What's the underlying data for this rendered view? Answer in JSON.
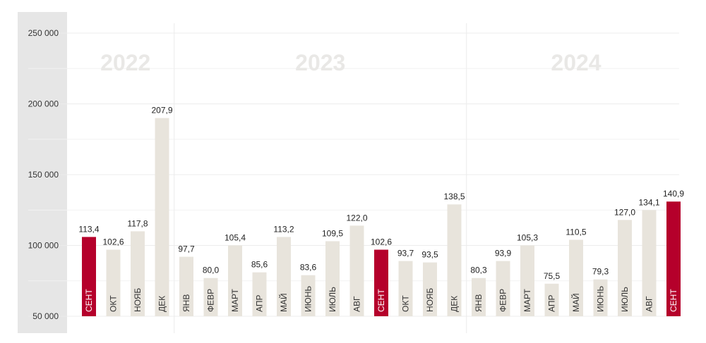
{
  "chart_data": {
    "type": "bar",
    "title": "",
    "xlabel": "",
    "ylabel": "",
    "ylim": [
      50000,
      250000
    ],
    "yticks": [
      "250 000",
      "200 000",
      "150 000",
      "100 000",
      "50 000"
    ],
    "ytick_values": [
      250000,
      200000,
      150000,
      100000,
      50000
    ],
    "grid": true,
    "years": [
      "2022",
      "2023",
      "2024"
    ],
    "colors": {
      "bar": "#e8e4dc",
      "highlight": "#b5002b",
      "axis_panel": "#e6e6e6",
      "grid": "#ececec"
    },
    "categories": [
      "СЕНТ",
      "ОКТ",
      "НОЯБ",
      "ДЕК",
      "ЯНВ",
      "ФЕВР",
      "МАРТ",
      "АПР",
      "МАЙ",
      "ИЮНЬ",
      "ИЮЛЬ",
      "АВГ",
      "СЕНТ",
      "ОКТ",
      "НОЯБ",
      "ДЕК",
      "ЯНВ",
      "ФЕВР",
      "МАРТ",
      "АПР",
      "МАЙ",
      "ИЮНЬ",
      "ИЮЛЬ",
      "АВГ",
      "СЕНТ"
    ],
    "category_year": [
      "2022",
      "2022",
      "2022",
      "2022",
      "2023",
      "2023",
      "2023",
      "2023",
      "2023",
      "2023",
      "2023",
      "2023",
      "2023",
      "2023",
      "2023",
      "2023",
      "2024",
      "2024",
      "2024",
      "2024",
      "2024",
      "2024",
      "2024",
      "2024",
      "2024"
    ],
    "values": [
      106000,
      97000,
      110000,
      190000,
      92000,
      77000,
      100000,
      81000,
      106000,
      79000,
      103000,
      114000,
      97000,
      89000,
      88000,
      129000,
      77000,
      89000,
      100000,
      73000,
      104000,
      76000,
      118000,
      125000,
      131000
    ],
    "labels": [
      "113,4",
      "102,6",
      "117,8",
      "207,9",
      "97,7",
      "80,0",
      "105,4",
      "85,6",
      "113,2",
      "83,6",
      "109,5",
      "122,0",
      "102,6",
      "93,7",
      "93,5",
      "138,5",
      "80,3",
      "93,9",
      "105,3",
      "75,5",
      "110,5",
      "79,3",
      "127,0",
      "134,1",
      "140,9"
    ],
    "highlight": [
      true,
      false,
      false,
      false,
      false,
      false,
      false,
      false,
      false,
      false,
      false,
      false,
      true,
      false,
      false,
      false,
      false,
      false,
      false,
      false,
      false,
      false,
      false,
      false,
      true
    ]
  }
}
